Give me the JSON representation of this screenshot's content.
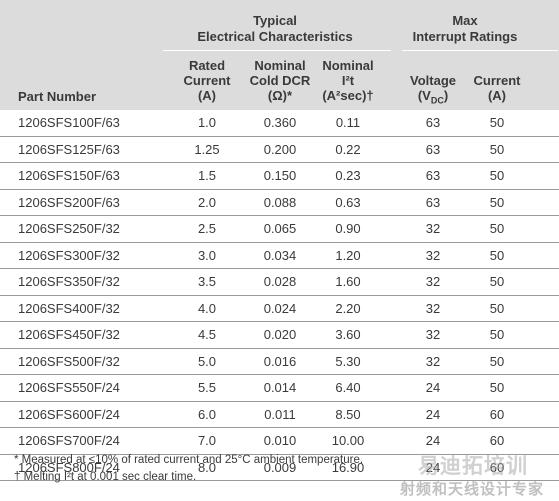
{
  "header": {
    "group_typical": [
      "Typical",
      "Electrical Characteristics"
    ],
    "group_max": [
      "Max",
      "Interrupt Ratings"
    ],
    "part_number": "Part Number",
    "rated_current": [
      "Rated",
      "Current",
      "(A)"
    ],
    "cold_dcr": [
      "Nominal",
      "Cold DCR",
      "(Ω)*"
    ],
    "i2t": [
      "Nominal",
      "I²t",
      "(A²sec)†"
    ],
    "voltage": [
      "Voltage",
      "(V",
      "DC",
      ")"
    ],
    "current": [
      "Current",
      "(A)"
    ]
  },
  "rows": [
    [
      "1206SFS100F/63",
      "1.0",
      "0.360",
      "0.11",
      "63",
      "50"
    ],
    [
      "1206SFS125F/63",
      "1.25",
      "0.200",
      "0.22",
      "63",
      "50"
    ],
    [
      "1206SFS150F/63",
      "1.5",
      "0.150",
      "0.23",
      "63",
      "50"
    ],
    [
      "1206SFS200F/63",
      "2.0",
      "0.088",
      "0.63",
      "63",
      "50"
    ],
    [
      "1206SFS250F/32",
      "2.5",
      "0.065",
      "0.90",
      "32",
      "50"
    ],
    [
      "1206SFS300F/32",
      "3.0",
      "0.034",
      "1.20",
      "32",
      "50"
    ],
    [
      "1206SFS350F/32",
      "3.5",
      "0.028",
      "1.60",
      "32",
      "50"
    ],
    [
      "1206SFS400F/32",
      "4.0",
      "0.024",
      "2.20",
      "32",
      "50"
    ],
    [
      "1206SFS450F/32",
      "4.5",
      "0.020",
      "3.60",
      "32",
      "50"
    ],
    [
      "1206SFS500F/32",
      "5.0",
      "0.016",
      "5.30",
      "32",
      "50"
    ],
    [
      "1206SFS550F/24",
      "5.5",
      "0.014",
      "6.40",
      "24",
      "50"
    ],
    [
      "1206SFS600F/24",
      "6.0",
      "0.011",
      "8.50",
      "24",
      "60"
    ],
    [
      "1206SFS700F/24",
      "7.0",
      "0.010",
      "10.00",
      "24",
      "60"
    ],
    [
      "1206SFS800F/24",
      "8.0",
      "0.009",
      "16.90",
      "24",
      "60"
    ]
  ],
  "notes": [
    "* Measured at ≤10% of rated current and 25°C ambient temperature.",
    "† Melting I²t at 0.001 sec clear time."
  ],
  "watermark": [
    "易迪拓培训",
    "射频和天线设计专家"
  ]
}
